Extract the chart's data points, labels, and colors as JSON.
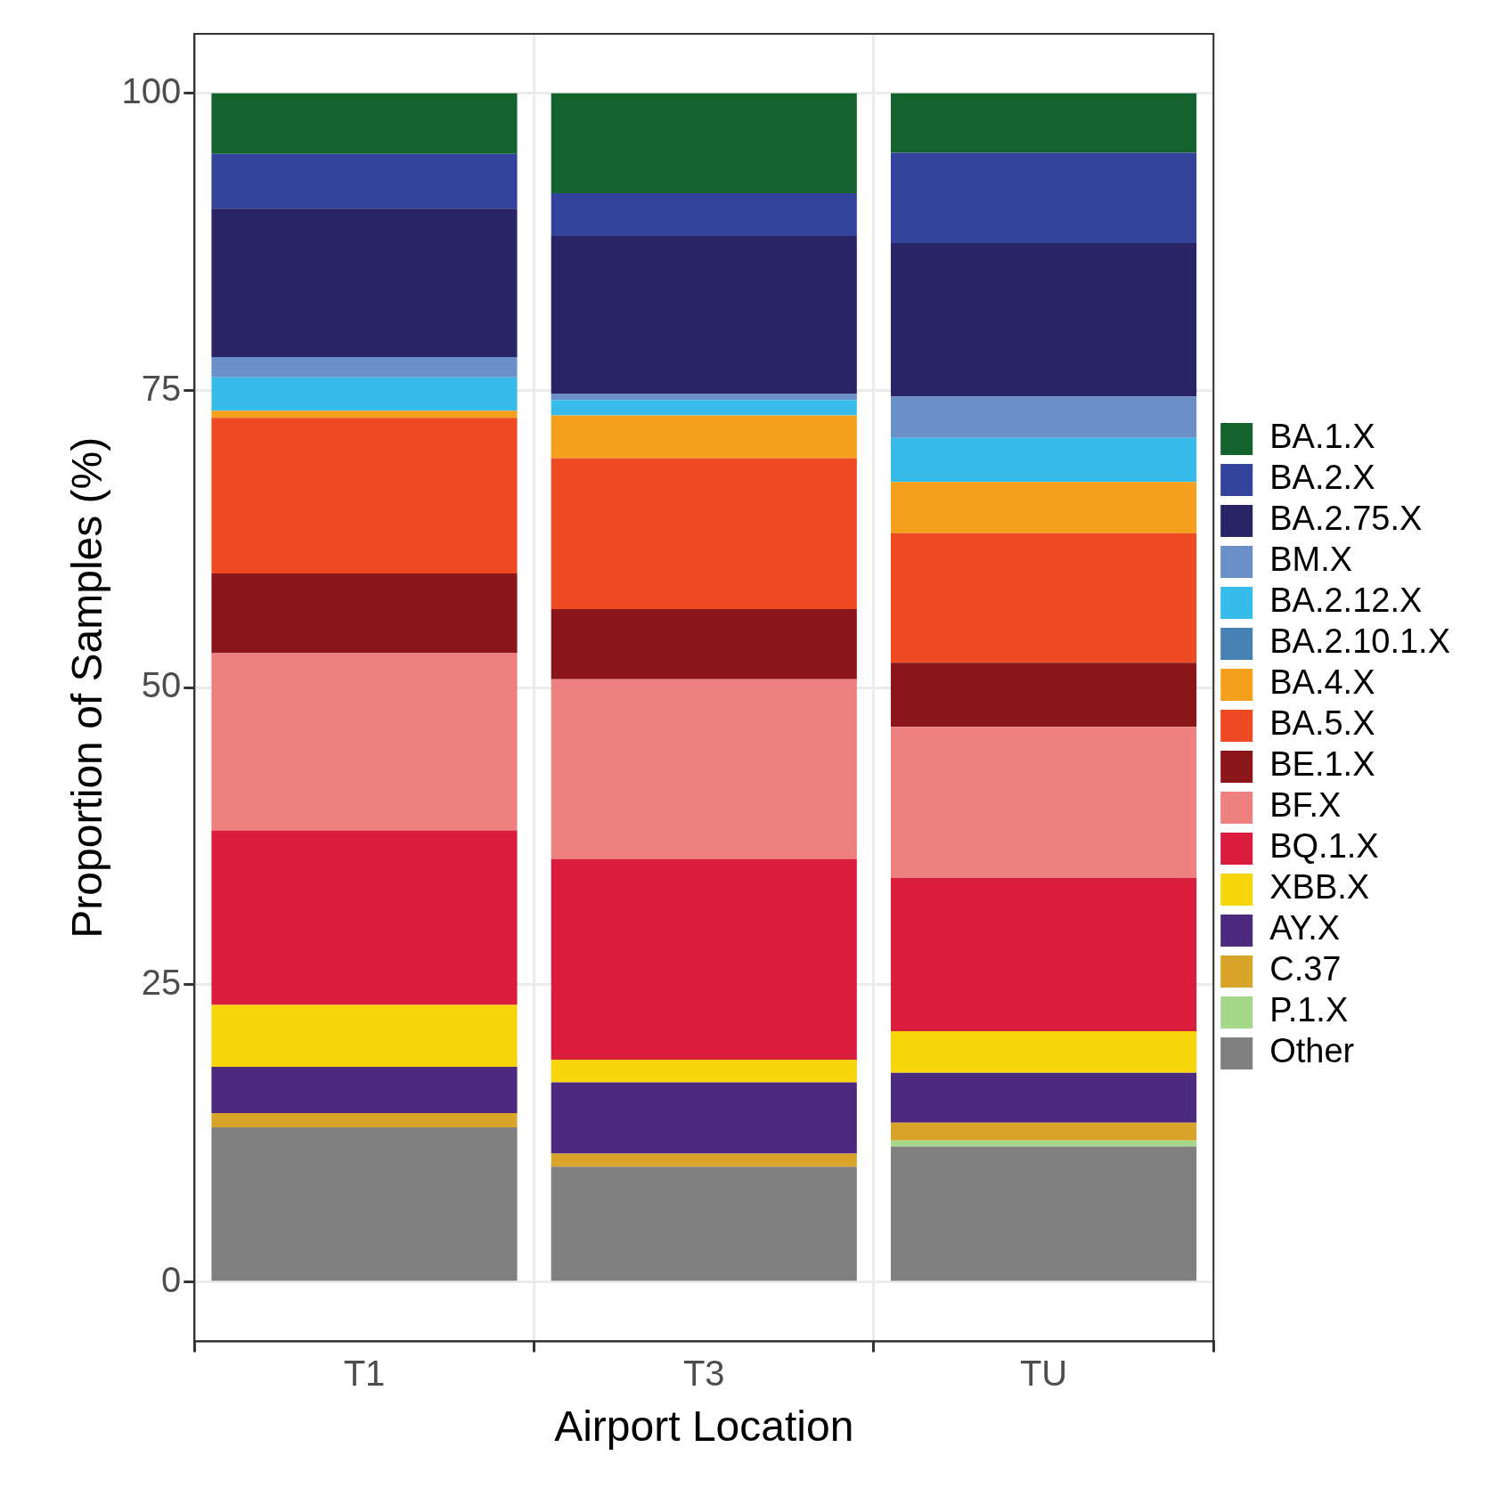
{
  "chart_data": {
    "type": "bar",
    "xlabel": "Airport Location",
    "ylabel": "Proportion of Samples (%)",
    "categories": [
      "T1",
      "T3",
      "TU"
    ],
    "stacked": true,
    "ylim": [
      -5,
      105
    ],
    "yticks": [
      0,
      25,
      50,
      75,
      100
    ],
    "grid": true,
    "legend": "right",
    "series": [
      {
        "name": "Other",
        "color": "#808080",
        "values": [
          13.0,
          9.7,
          11.4
        ]
      },
      {
        "name": "P.1.X",
        "color": "#a6d88a",
        "values": [
          0,
          0,
          0.5
        ]
      },
      {
        "name": "C.37",
        "color": "#d9a42a",
        "values": [
          1.2,
          1.1,
          1.5
        ]
      },
      {
        "name": "AY.X",
        "color": "#4b2a7f",
        "values": [
          3.9,
          6.0,
          4.2
        ]
      },
      {
        "name": "XBB.X",
        "color": "#f7d50a",
        "values": [
          5.2,
          1.9,
          3.5
        ]
      },
      {
        "name": "BQ.1.X",
        "color": "#da1d3d",
        "values": [
          14.7,
          16.9,
          12.9
        ]
      },
      {
        "name": "BF.X",
        "color": "#ee8080",
        "values": [
          14.9,
          15.1,
          12.7
        ]
      },
      {
        "name": "BE.1.X",
        "color": "#8a161a",
        "values": [
          6.7,
          5.9,
          5.4
        ]
      },
      {
        "name": "BA.5.X",
        "color": "#ee4b23",
        "values": [
          13.1,
          12.7,
          10.9
        ]
      },
      {
        "name": "BA.4.X",
        "color": "#f5a01c",
        "values": [
          0.6,
          3.6,
          4.3
        ]
      },
      {
        "name": "BA.2.10.1.X",
        "color": "#4682b4",
        "values": [
          0,
          0,
          0
        ]
      },
      {
        "name": "BA.2.12.X",
        "color": "#36bbea",
        "values": [
          2.8,
          1.3,
          3.7
        ]
      },
      {
        "name": "BM.X",
        "color": "#6b8fc9",
        "values": [
          1.7,
          0.5,
          3.5
        ]
      },
      {
        "name": "BA.2.75.X",
        "color": "#282466",
        "values": [
          12.5,
          13.3,
          12.9
        ]
      },
      {
        "name": "BA.2.X",
        "color": "#33429a",
        "values": [
          4.6,
          3.6,
          7.6
        ]
      },
      {
        "name": "BA.1.X",
        "color": "#14632f",
        "values": [
          5.1,
          8.4,
          5.0
        ]
      }
    ]
  }
}
